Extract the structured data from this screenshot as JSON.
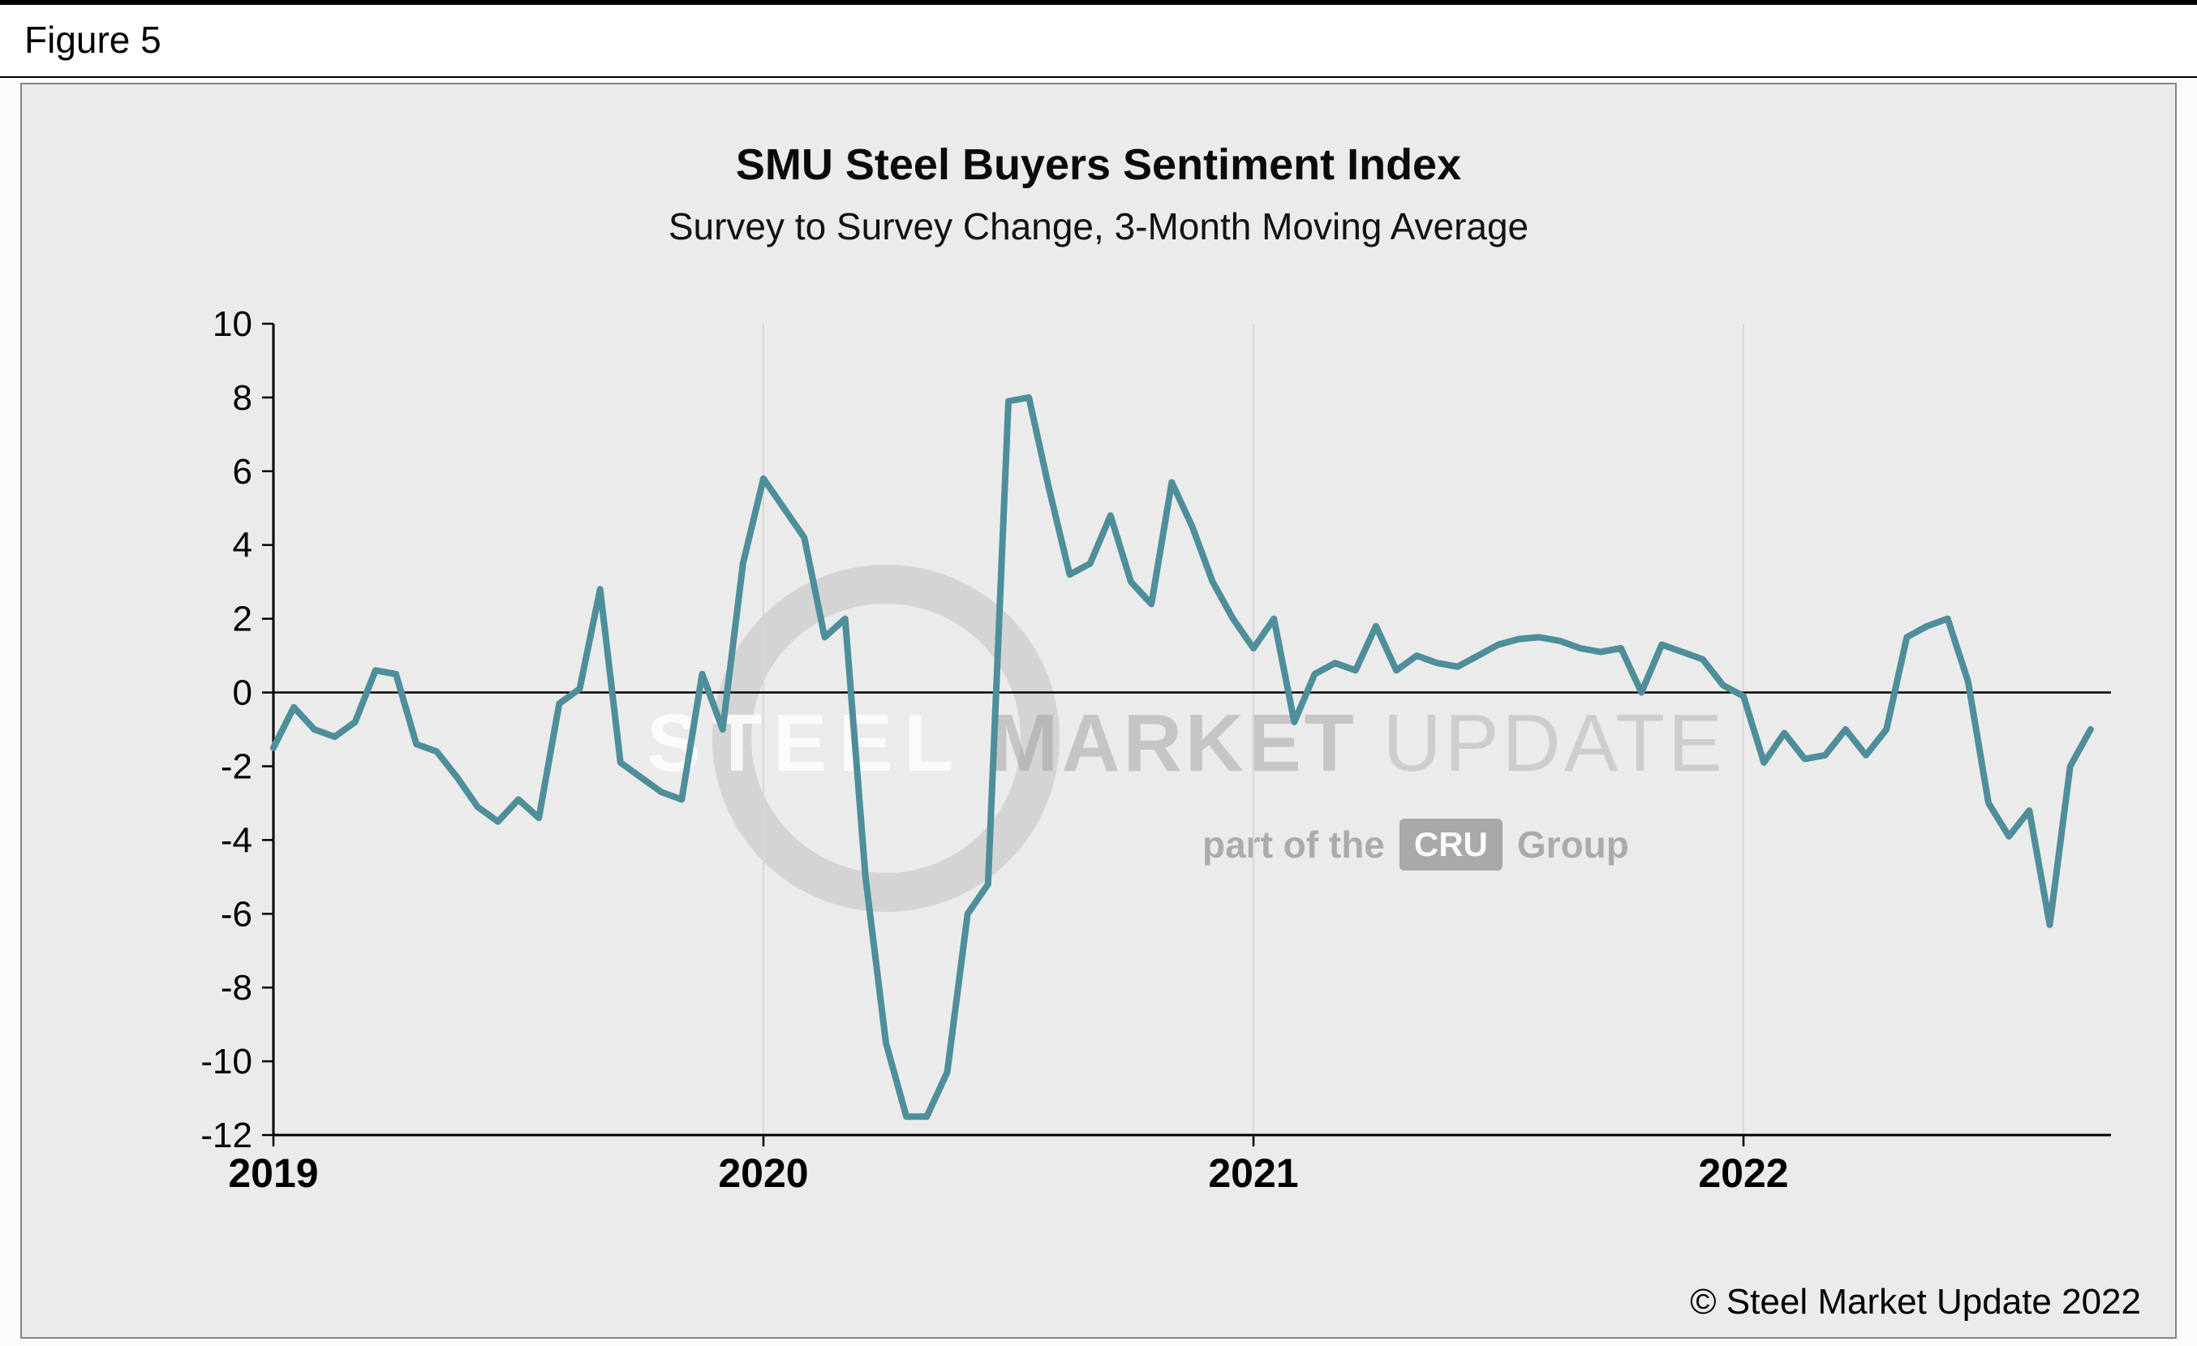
{
  "figure_label": "Figure 5",
  "chart": {
    "title": "SMU Steel Buyers Sentiment Index",
    "subtitle": "Survey to Survey Change, 3-Month Moving Average"
  },
  "watermark": {
    "brand_steel": "STEEL",
    "brand_market": " MARKET",
    "brand_update": " UPDATE",
    "tagline_prefix": "part of the",
    "tagline_box": "CRU",
    "tagline_suffix": "Group"
  },
  "footer": {
    "copyright": "© Steel Market Update 2022"
  },
  "chart_data": {
    "type": "line",
    "title": "SMU Steel Buyers Sentiment Index",
    "subtitle": "Survey to Survey Change, 3-Month Moving Average",
    "series_name": "SMU Steel Buyers Sentiment Index, survey-to-survey change, 3-month moving average",
    "x_start": 2019,
    "x_step_years": 0.0416667,
    "xlim": [
      2019,
      2022.75
    ],
    "ylim": [
      -12,
      10
    ],
    "x_ticks": [
      "2019",
      "2020",
      "2021",
      "2022"
    ],
    "x_tick_values": [
      2019,
      2020,
      2021,
      2022
    ],
    "y_ticks": [
      10,
      8,
      6,
      4,
      2,
      0,
      -2,
      -4,
      -6,
      -8,
      -10,
      -12
    ],
    "zero_line": true,
    "grid": "vertical-year-lines",
    "legend": "none",
    "line_color": "#4d8e9a",
    "values": [
      -1.5,
      -0.4,
      -1.0,
      -1.2,
      -0.8,
      0.6,
      0.5,
      -1.4,
      -1.6,
      -2.3,
      -3.1,
      -3.5,
      -2.9,
      -3.4,
      -0.3,
      0.1,
      2.8,
      -1.9,
      -2.3,
      -2.7,
      -2.9,
      0.5,
      -1.0,
      3.5,
      5.8,
      5.0,
      4.2,
      1.5,
      2.0,
      -5.0,
      -9.5,
      -11.5,
      -11.5,
      -10.3,
      -6.0,
      -5.2,
      7.9,
      8.0,
      5.5,
      3.2,
      3.5,
      4.8,
      3.0,
      2.4,
      5.7,
      4.5,
      3.0,
      2.0,
      1.2,
      2.0,
      -0.8,
      0.5,
      0.8,
      0.6,
      1.8,
      0.6,
      1.0,
      0.8,
      0.7,
      1.0,
      1.3,
      1.45,
      1.5,
      1.4,
      1.2,
      1.1,
      1.2,
      0.0,
      1.3,
      1.1,
      0.9,
      0.2,
      -0.1,
      -1.9,
      -1.1,
      -1.8,
      -1.7,
      -1.0,
      -1.7,
      -1.0,
      1.5,
      1.8,
      2.0,
      0.3,
      -3.0,
      -3.9,
      -3.2,
      -6.3,
      -2.0,
      -1.0
    ]
  }
}
